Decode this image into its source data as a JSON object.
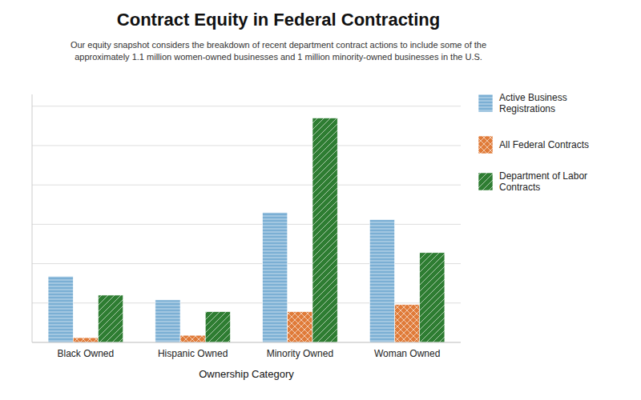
{
  "chart_data": {
    "type": "bar",
    "title": "Contract Equity in Federal Contracting",
    "subtitle": "Our equity snapshot considers the breakdown of recent department contract actions to include some of the\napproximately 1.1 million women-owned businesses and 1 million minority-owned businesses in the U.S.",
    "xlabel": "Ownership Category",
    "categories": [
      "Black Owned",
      "Hispanic Owned",
      "Minority Owned",
      "Woman Owned"
    ],
    "series": [
      {
        "name": "Active Business\nRegistrations",
        "color": "#7BAFD4",
        "values": [
          0.28,
          0.18,
          0.55,
          0.52
        ]
      },
      {
        "name": "All Federal Contracts",
        "color": "#E07B39",
        "values": [
          0.02,
          0.03,
          0.13,
          0.16
        ]
      },
      {
        "name": "Department of Labor\nContracts",
        "color": "#2E7D32",
        "values": [
          0.2,
          0.13,
          0.95,
          0.38
        ]
      }
    ],
    "ylim": [
      0,
      1.05
    ],
    "yticks": [
      0,
      0.16666666666666666,
      0.3333333333333333,
      0.5,
      0.6666666666666666,
      0.8333333333333333,
      1.0
    ],
    "grid": true,
    "legend": "right",
    "tick_labels": "x"
  }
}
